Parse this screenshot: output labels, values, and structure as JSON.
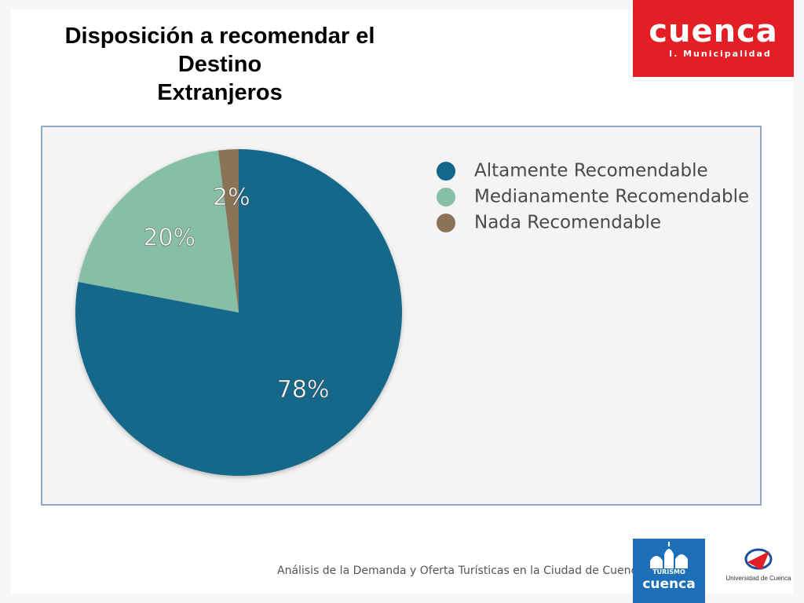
{
  "title": {
    "line1": "Disposición a recomendar el",
    "line2": "Destino",
    "line3": "Extranjeros"
  },
  "logos": {
    "cuenca": "cuenca",
    "cuenca_sub": "I. Municipalidad",
    "turismo_small": "TURISMO",
    "turismo_big": "cuenca",
    "universidad": "Universidad de Cuenca"
  },
  "footer": {
    "text": "Análisis de la Demanda y Oferta Turísticas en la Ciudad de Cuenca"
  },
  "colors": {
    "brand_red": "#e31e24",
    "turismo_blue": "#1d70b7"
  },
  "chart_data": {
    "type": "pie",
    "categories": [
      "Altamente Recomendable",
      "Medianamente Recomendable",
      "Nada Recomendable"
    ],
    "values": [
      78,
      20,
      2
    ],
    "labels": [
      "78%",
      "20%",
      "2%"
    ],
    "colors": [
      "#13678a",
      "#86bfa6",
      "#8b7355"
    ],
    "legend_position": "top-right"
  }
}
